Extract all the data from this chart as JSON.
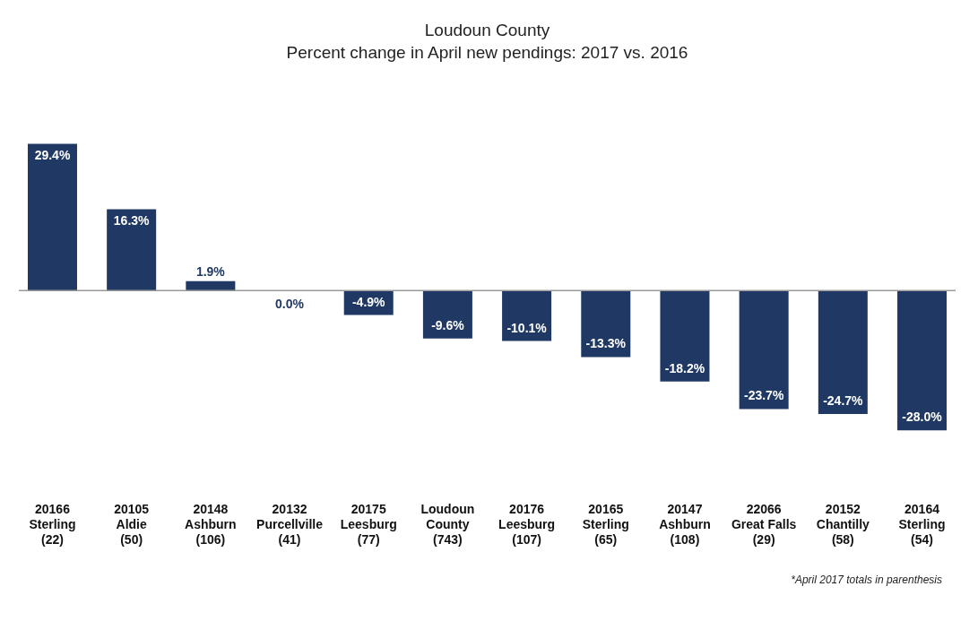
{
  "chart_data": {
    "type": "bar",
    "title": "Loudoun County",
    "subtitle": "Percent change in April new pendings: 2017 vs. 2016",
    "categories": [
      "20166\nSterling\n(22)",
      "20105\nAldie\n(50)",
      "20148\nAshburn\n(106)",
      "20132\nPurcellville\n(41)",
      "20175\nLeesburg\n(77)",
      "Loudoun\nCounty\n(743)",
      "20176\nLeesburg\n(107)",
      "20165\nSterling\n(65)",
      "20147\nAshburn\n(108)",
      "22066\nGreat Falls\n(29)",
      "20152\nChantilly\n(58)",
      "20164\nSterling\n(54)"
    ],
    "values": [
      29.4,
      16.3,
      1.9,
      0.0,
      -4.9,
      -9.6,
      -10.1,
      -13.3,
      -18.2,
      -23.7,
      -24.7,
      -28.0
    ],
    "value_labels": [
      "29.4%",
      "16.3%",
      "1.9%",
      "0.0%",
      "-4.9%",
      "-9.6%",
      "-10.1%",
      "-13.3%",
      "-18.2%",
      "-23.7%",
      "-24.7%",
      "-28.0%"
    ],
    "color": "#1f3864",
    "annotations": [
      "*April 2017 totals in parenthesis"
    ]
  }
}
